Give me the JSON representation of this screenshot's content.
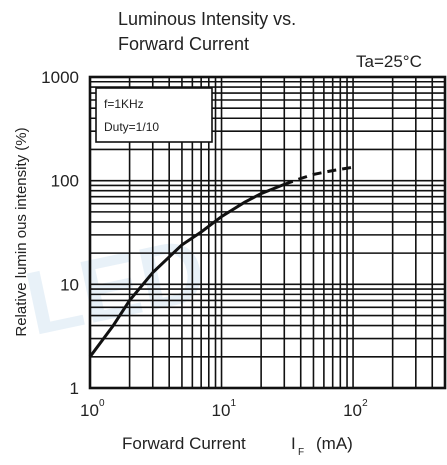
{
  "chart_data": {
    "type": "line",
    "title_lines": [
      "Luminous Intensity vs.",
      "Forward Current"
    ],
    "condition": "Ta=25°C",
    "xlabel": "Forward Current",
    "xlabel_symbol": "I",
    "xlabel_subscript": "F",
    "xlabel_unit": "(mA)",
    "ylabel": "Relative lumin ous intensity  (%)",
    "xscale": "log",
    "yscale": "log",
    "xlim": [
      1,
      500
    ],
    "ylim": [
      1,
      1000
    ],
    "x_ticks": [
      {
        "base": "10",
        "exp": "0",
        "value": 1
      },
      {
        "base": "10",
        "exp": "1",
        "value": 10
      },
      {
        "base": "10",
        "exp": "2",
        "value": 100
      }
    ],
    "y_ticks": [
      {
        "label": "1",
        "value": 1
      },
      {
        "label": "10",
        "value": 10
      },
      {
        "label": "100",
        "value": 100
      },
      {
        "label": "1000",
        "value": 1000
      }
    ],
    "grid": true,
    "legend_position": "top-left",
    "legend_lines": [
      "f=1KHz",
      "Duty=1/10"
    ],
    "series": [
      {
        "line_style": "solid",
        "x": [
          1,
          1.5,
          2,
          3,
          5,
          7,
          10,
          15,
          20,
          30
        ],
        "y": [
          2,
          4,
          7,
          13,
          24,
          32,
          45,
          62,
          75,
          92
        ]
      },
      {
        "line_style": "dashed",
        "x": [
          30,
          40,
          50,
          70,
          100
        ],
        "y": [
          92,
          105,
          115,
          125,
          135
        ]
      }
    ]
  }
}
